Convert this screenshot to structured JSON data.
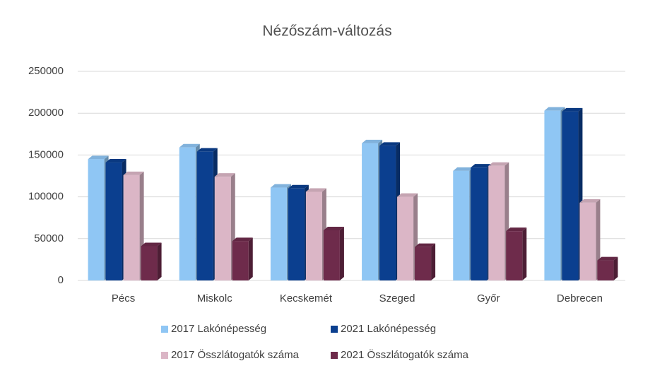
{
  "chart_data": {
    "type": "bar",
    "title": "Nézőszám-változás",
    "categories": [
      "Pécs",
      "Miskolc",
      "Kecskemét",
      "Szeged",
      "Győr",
      "Debrecen"
    ],
    "series": [
      {
        "name": "2017 Lakónépesség",
        "color": "#8fc6f4",
        "values": [
          145000,
          159000,
          111000,
          164000,
          131000,
          203000
        ]
      },
      {
        "name": "2021 Lakónépesség",
        "color": "#0b3f8f",
        "values": [
          141000,
          154000,
          110000,
          161000,
          135000,
          202000
        ]
      },
      {
        "name": "2017 Összlátogatók száma",
        "color": "#dbb6c6",
        "values": [
          126000,
          124000,
          106000,
          100000,
          137000,
          93000
        ]
      },
      {
        "name": "2021 Összlátogatók száma",
        "color": "#6e2b4b",
        "values": [
          41000,
          47000,
          60000,
          40000,
          59000,
          24000
        ]
      }
    ],
    "ylim": [
      0,
      250000
    ],
    "yticks": [
      0,
      50000,
      100000,
      150000,
      200000,
      250000
    ],
    "grid": true,
    "legend": "bottom"
  }
}
